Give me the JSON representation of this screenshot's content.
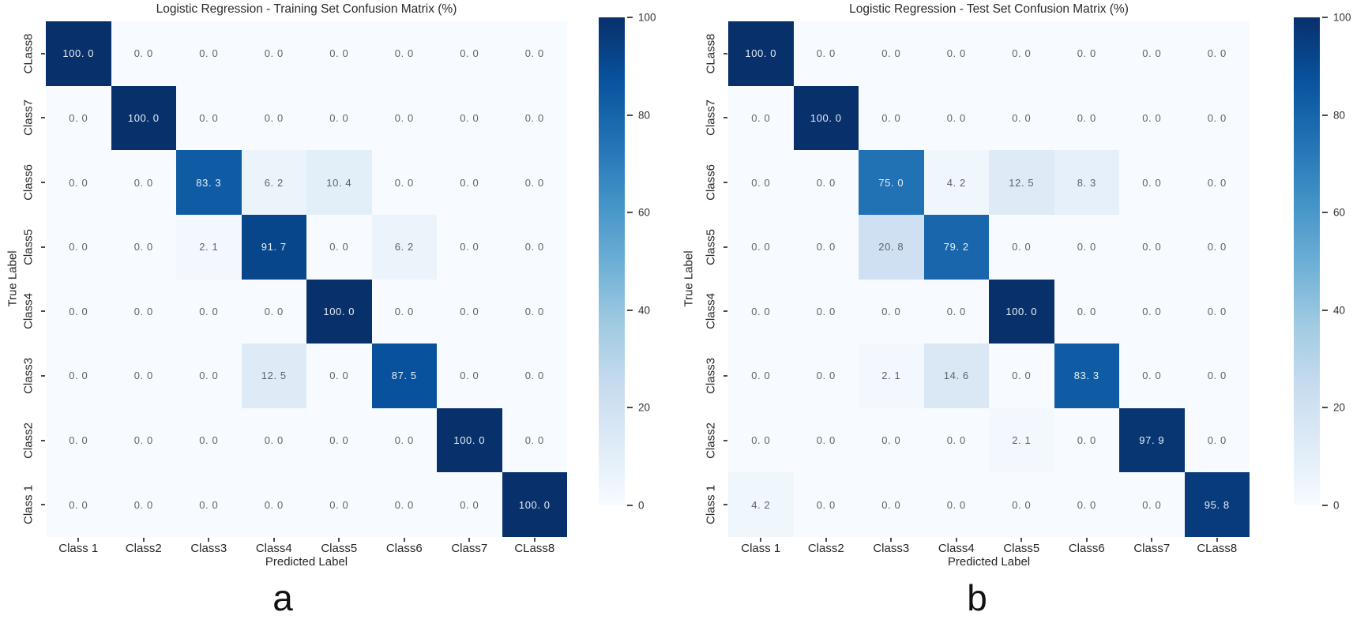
{
  "page": {
    "background": "#ffffff"
  },
  "colormap": {
    "name": "Blues",
    "stops": [
      "#f7fbff",
      "#deebf7",
      "#c6dbef",
      "#9ecae1",
      "#6baed6",
      "#4292c6",
      "#2171b5",
      "#08519c",
      "#08306b"
    ]
  },
  "text_colors": {
    "value_on_dark": "#e9eff8",
    "value_on_light": "#5f6368"
  },
  "value_label_format": "one decimal, space after decimal point (e.g. 83. 3)",
  "chart_data": [
    {
      "type": "heatmap",
      "panel": "a",
      "title": "Logistic Regression - Training Set Confusion Matrix (%)",
      "xlabel": "Predicted Label",
      "ylabel": "True Label",
      "x_tick_labels": [
        "Class 1",
        "Class2",
        "Class3",
        "Class4",
        "Class5",
        "Class6",
        "Class7",
        "CLass8"
      ],
      "y_tick_labels": [
        "CLass8",
        "Class7",
        "Class6",
        "Class5",
        "Class4",
        "Class3",
        "Class2",
        "Class 1"
      ],
      "values": [
        [
          100.0,
          0.0,
          0.0,
          0.0,
          0.0,
          0.0,
          0.0,
          0.0
        ],
        [
          0.0,
          100.0,
          0.0,
          0.0,
          0.0,
          0.0,
          0.0,
          0.0
        ],
        [
          0.0,
          0.0,
          83.3,
          6.2,
          10.4,
          0.0,
          0.0,
          0.0
        ],
        [
          0.0,
          0.0,
          2.1,
          91.7,
          0.0,
          6.2,
          0.0,
          0.0
        ],
        [
          0.0,
          0.0,
          0.0,
          0.0,
          100.0,
          0.0,
          0.0,
          0.0
        ],
        [
          0.0,
          0.0,
          0.0,
          12.5,
          0.0,
          87.5,
          0.0,
          0.0
        ],
        [
          0.0,
          0.0,
          0.0,
          0.0,
          0.0,
          0.0,
          100.0,
          0.0
        ],
        [
          0.0,
          0.0,
          0.0,
          0.0,
          0.0,
          0.0,
          0.0,
          100.0
        ]
      ],
      "value_range": [
        0,
        100
      ],
      "grid": false,
      "legend_position": "right-colorbar",
      "colorbar_tick_labels": [
        "100",
        "80",
        "60",
        "40",
        "20",
        "0"
      ],
      "caption": "a"
    },
    {
      "type": "heatmap",
      "panel": "b",
      "title": "Logistic Regression - Test Set Confusion Matrix (%)",
      "xlabel": "Predicted Label",
      "ylabel": "True Label",
      "x_tick_labels": [
        "Class 1",
        "Class2",
        "Class3",
        "Class4",
        "Class5",
        "Class6",
        "Class7",
        "CLass8"
      ],
      "y_tick_labels": [
        "CLass8",
        "Class7",
        "Class6",
        "Class5",
        "Class4",
        "Class3",
        "Class2",
        "Class 1"
      ],
      "values": [
        [
          100.0,
          0.0,
          0.0,
          0.0,
          0.0,
          0.0,
          0.0,
          0.0
        ],
        [
          0.0,
          100.0,
          0.0,
          0.0,
          0.0,
          0.0,
          0.0,
          0.0
        ],
        [
          0.0,
          0.0,
          75.0,
          4.2,
          12.5,
          8.3,
          0.0,
          0.0
        ],
        [
          0.0,
          0.0,
          20.8,
          79.2,
          0.0,
          0.0,
          0.0,
          0.0
        ],
        [
          0.0,
          0.0,
          0.0,
          0.0,
          100.0,
          0.0,
          0.0,
          0.0
        ],
        [
          0.0,
          0.0,
          2.1,
          14.6,
          0.0,
          83.3,
          0.0,
          0.0
        ],
        [
          0.0,
          0.0,
          0.0,
          0.0,
          2.1,
          0.0,
          97.9,
          0.0
        ],
        [
          4.2,
          0.0,
          0.0,
          0.0,
          0.0,
          0.0,
          0.0,
          95.8
        ]
      ],
      "value_range": [
        0,
        100
      ],
      "grid": false,
      "legend_position": "right-colorbar",
      "colorbar_tick_labels": [
        "100",
        "80",
        "60",
        "40",
        "20",
        "0"
      ],
      "caption": "b"
    }
  ]
}
